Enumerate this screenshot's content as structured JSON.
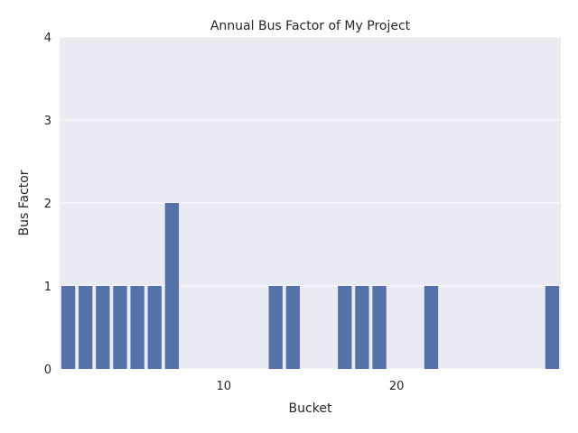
{
  "chart_data": {
    "type": "bar",
    "title": "Annual Bus Factor of My Project",
    "xlabel": "Bucket",
    "ylabel": "Bus Factor",
    "categories": [
      1,
      2,
      3,
      4,
      5,
      6,
      7,
      8,
      9,
      10,
      11,
      12,
      13,
      14,
      15,
      16,
      17,
      18,
      19,
      20,
      21,
      22,
      23,
      24,
      25,
      26,
      27,
      28,
      29
    ],
    "values": [
      1,
      1,
      1,
      1,
      1,
      1,
      2,
      0,
      0,
      0,
      0,
      0,
      1,
      1,
      0,
      0,
      1,
      1,
      1,
      0,
      0,
      1,
      0,
      0,
      0,
      0,
      0,
      0,
      1
    ],
    "x_ticks": [
      10,
      20
    ],
    "y_ticks": [
      0,
      1,
      2,
      3,
      4
    ],
    "ylim": [
      0,
      4
    ],
    "grid": true,
    "colors": {
      "plot_background": "#eaeaf2",
      "bar": "#5471a8",
      "grid": "#ffffff"
    }
  }
}
